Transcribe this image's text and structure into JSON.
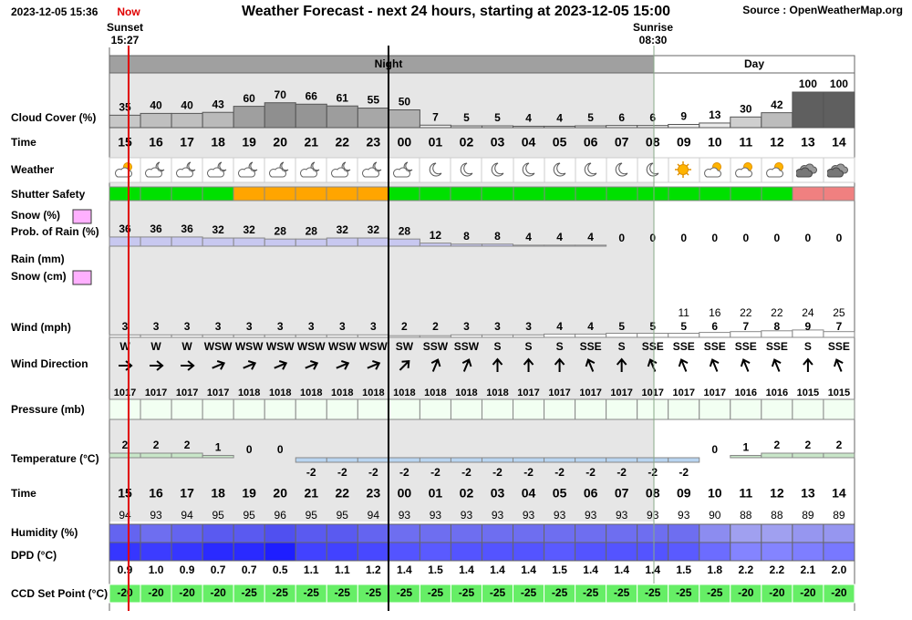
{
  "header": {
    "timestamp": "2023-12-05 15:36",
    "now": "Now",
    "title": "Weather Forecast - next 24 hours, starting at 2023-12-05 15:00",
    "source": "Source : OpenWeatherMap.org"
  },
  "sunset": {
    "label": "Sunset",
    "time": "15:27"
  },
  "sunrise": {
    "label": "Sunrise",
    "time": "08:30"
  },
  "periods": {
    "night": "Night",
    "day": "Day"
  },
  "labels": {
    "cloud_cover": "Cloud Cover (%)",
    "time": "Time",
    "weather": "Weather",
    "shutter_safety": "Shutter Safety",
    "snow_pct": "Snow (%)",
    "prob_rain": "Prob. of Rain (%)",
    "rain_mm": "Rain (mm)",
    "snow_cm": "Snow (cm)",
    "wind": "Wind (mph)",
    "wind_direction": "Wind Direction",
    "pressure": "Pressure (mb)",
    "temperature": "Temperature (°C)",
    "humidity": "Humidity (%)",
    "dpd": "DPD (°C)",
    "ccd_set_point": "CCD Set Point (°C)"
  },
  "hours": [
    "15",
    "16",
    "17",
    "18",
    "19",
    "20",
    "21",
    "22",
    "23",
    "00",
    "01",
    "02",
    "03",
    "04",
    "05",
    "06",
    "07",
    "08",
    "09",
    "10",
    "11",
    "12",
    "13",
    "14"
  ],
  "cloud_cover": [
    35,
    40,
    40,
    43,
    60,
    70,
    66,
    61,
    55,
    50,
    7,
    5,
    5,
    4,
    4,
    5,
    6,
    6,
    9,
    13,
    30,
    42,
    100,
    100
  ],
  "prob_rain": [
    36,
    36,
    36,
    32,
    32,
    28,
    28,
    32,
    32,
    28,
    12,
    8,
    8,
    4,
    4,
    4,
    0,
    0,
    0,
    0,
    0,
    0,
    0,
    0
  ],
  "wind_speed": [
    3,
    3,
    3,
    3,
    3,
    3,
    3,
    3,
    3,
    2,
    2,
    3,
    3,
    3,
    4,
    4,
    5,
    5,
    5,
    6,
    7,
    8,
    9,
    7
  ],
  "wind_gust": [
    null,
    null,
    null,
    null,
    null,
    null,
    null,
    null,
    null,
    null,
    null,
    null,
    null,
    null,
    null,
    null,
    null,
    null,
    11,
    16,
    22,
    22,
    24,
    25
  ],
  "wind_direction": [
    "W",
    "W",
    "W",
    "WSW",
    "WSW",
    "WSW",
    "WSW",
    "WSW",
    "WSW",
    "SW",
    "SSW",
    "SSW",
    "S",
    "S",
    "S",
    "SSE",
    "S",
    "SSE",
    "SSE",
    "SSE",
    "SSE",
    "SSE",
    "S",
    "SSE"
  ],
  "pressure": [
    1017,
    1017,
    1017,
    1017,
    1018,
    1018,
    1018,
    1018,
    1018,
    1018,
    1018,
    1018,
    1018,
    1017,
    1017,
    1017,
    1017,
    1017,
    1017,
    1017,
    1016,
    1016,
    1015,
    1015
  ],
  "temperature": [
    2,
    2,
    2,
    1,
    0,
    0,
    -2,
    -2,
    -2,
    -2,
    -2,
    -2,
    -2,
    -2,
    -2,
    -2,
    -2,
    -2,
    -2,
    0,
    1,
    2,
    2,
    2
  ],
  "humidity": [
    94,
    93,
    94,
    95,
    95,
    96,
    95,
    95,
    94,
    93,
    93,
    93,
    93,
    93,
    93,
    93,
    93,
    93,
    93,
    90,
    88,
    88,
    89,
    89
  ],
  "dpd": {
    "values": [
      0.9,
      1,
      0.9,
      0.7,
      0.7,
      0.5,
      1.1,
      1.1,
      1.2,
      1.4,
      1.5,
      1.4,
      1.4,
      1.4,
      1.5,
      1.4,
      1.4,
      1.4,
      1.5,
      1.8,
      2.2,
      2.2,
      2.1,
      2
    ],
    "value_labels": [
      "0.9",
      "1.0",
      "0.9",
      "0.7",
      "0.7",
      "0.5",
      "1.1",
      "1.1",
      "1.2",
      "1.4",
      "1.5",
      "1.4",
      "1.4",
      "1.4",
      "1.5",
      "1.4",
      "1.4",
      "1.4",
      "1.5",
      "1.8",
      "2.2",
      "2.2",
      "2.1",
      "2.0"
    ]
  },
  "ccd_set_point": [
    -20,
    -20,
    -20,
    -20,
    -25,
    -25,
    -25,
    -25,
    -25,
    -25,
    -25,
    -25,
    -25,
    -25,
    -25,
    -25,
    -25,
    -25,
    -25,
    -25,
    -20,
    -20,
    -20,
    -20
  ]
}
